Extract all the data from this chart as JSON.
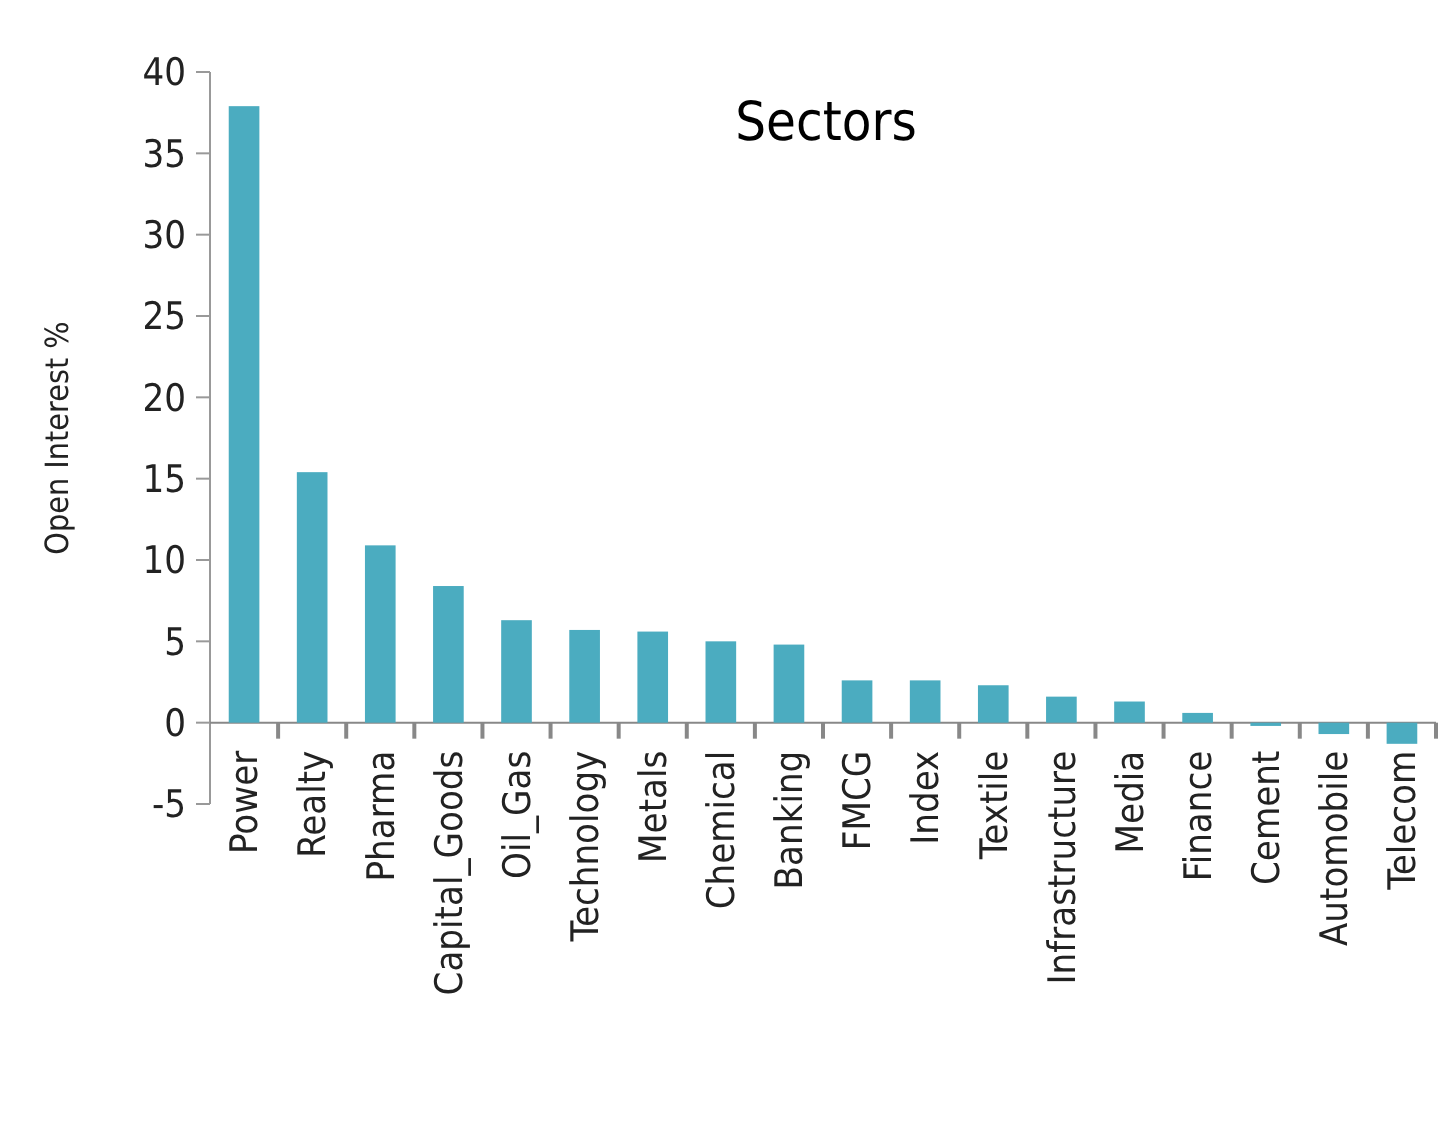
{
  "chart_data": {
    "type": "bar",
    "title": "Sectors",
    "ylabel": "Open Interest %",
    "categories": [
      "Power",
      "Realty",
      "Pharma",
      "Capital_Goods",
      "Oil_Gas",
      "Technology",
      "Metals",
      "Chemical",
      "Banking",
      "FMCG",
      "Index",
      "Textile",
      "Infrastructure",
      "Media",
      "Finance",
      "Cement",
      "Automobile",
      "Telecom"
    ],
    "values": [
      37.9,
      15.4,
      10.9,
      8.4,
      6.3,
      5.7,
      5.6,
      5.0,
      4.8,
      2.6,
      2.6,
      2.3,
      1.6,
      1.3,
      0.6,
      -0.2,
      -0.7,
      -1.3
    ],
    "color": "#4bacc0",
    "ylim": [
      -5,
      40
    ],
    "yticks": [
      -5,
      0,
      5,
      10,
      15,
      20,
      25,
      30,
      35,
      40
    ],
    "grid": false
  }
}
